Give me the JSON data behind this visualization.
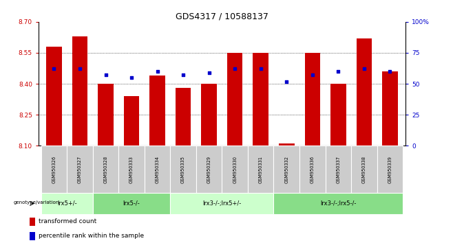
{
  "title": "GDS4317 / 10588137",
  "samples": [
    "GSM950326",
    "GSM950327",
    "GSM950328",
    "GSM950333",
    "GSM950334",
    "GSM950335",
    "GSM950329",
    "GSM950330",
    "GSM950331",
    "GSM950332",
    "GSM950336",
    "GSM950337",
    "GSM950338",
    "GSM950339"
  ],
  "red_values": [
    8.58,
    8.63,
    8.4,
    8.34,
    8.44,
    8.38,
    8.4,
    8.55,
    8.55,
    8.11,
    8.55,
    8.4,
    8.62,
    8.46
  ],
  "blue_values": [
    62,
    62,
    57,
    55,
    60,
    57,
    59,
    62,
    62,
    52,
    57,
    60,
    62,
    60
  ],
  "ymin": 8.1,
  "ymax": 8.7,
  "yticks": [
    8.1,
    8.25,
    8.4,
    8.55,
    8.7
  ],
  "right_yticks": [
    0,
    25,
    50,
    75,
    100
  ],
  "bar_color": "#cc0000",
  "marker_color": "#0000cc",
  "groups": [
    {
      "label": "lrx5+/-",
      "start": 0,
      "end": 2,
      "color": "#ccffcc"
    },
    {
      "label": "lrx5-/-",
      "start": 2,
      "end": 5,
      "color": "#88dd88"
    },
    {
      "label": "lrx3-/-;lrx5+/-",
      "start": 5,
      "end": 9,
      "color": "#ccffcc"
    },
    {
      "label": "lrx3-/-;lrx5-/-",
      "start": 9,
      "end": 14,
      "color": "#88dd88"
    }
  ],
  "bar_width": 0.6,
  "legend_red": "transformed count",
  "legend_blue": "percentile rank within the sample",
  "left_tick_color": "#cc0000",
  "right_tick_color": "#0000cc",
  "genotype_label": "genotype/variation"
}
